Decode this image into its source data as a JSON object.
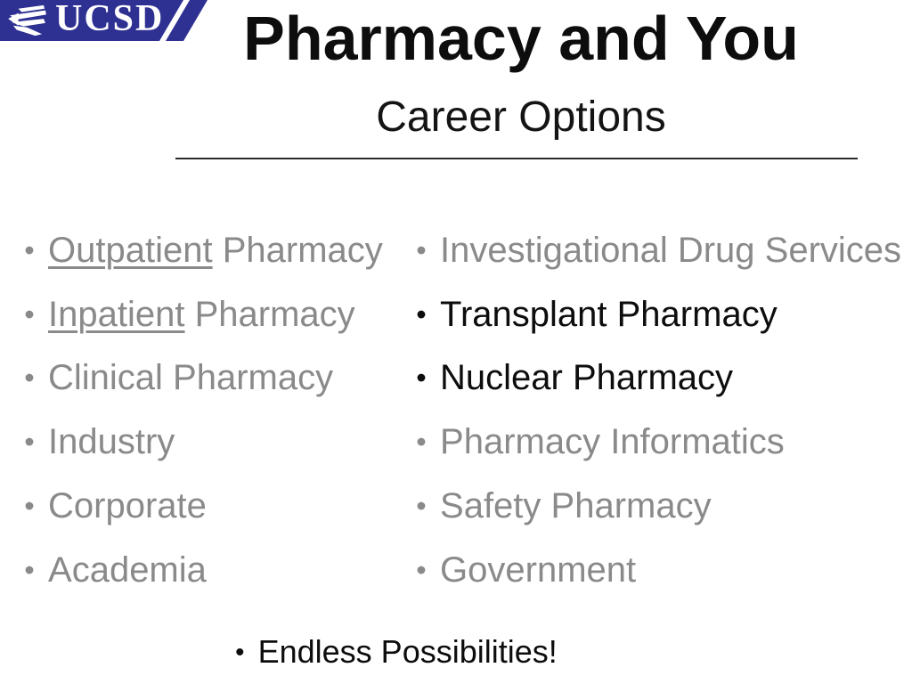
{
  "logo": {
    "text": "UCSD",
    "bg_color": "#2e3192",
    "text_color": "#ffffff"
  },
  "slide": {
    "title": "Pharmacy and You",
    "subtitle": "Career Options"
  },
  "bullet_icon": "•",
  "colors": {
    "gray": "#8a8a8a",
    "black": "#0d0d0d"
  },
  "columns": {
    "left": [
      {
        "color": "gray",
        "segments": [
          {
            "text": "Outpatient",
            "underline": true
          },
          {
            "text": " Pharmacy",
            "underline": false
          }
        ]
      },
      {
        "color": "gray",
        "segments": [
          {
            "text": "Inpatient",
            "underline": true
          },
          {
            "text": " Pharmacy",
            "underline": false
          }
        ]
      },
      {
        "color": "gray",
        "segments": [
          {
            "text": "Clinical Pharmacy",
            "underline": false
          }
        ]
      },
      {
        "color": "gray",
        "segments": [
          {
            "text": "Industry",
            "underline": false
          }
        ]
      },
      {
        "color": "gray",
        "segments": [
          {
            "text": "Corporate",
            "underline": false
          }
        ]
      },
      {
        "color": "gray",
        "segments": [
          {
            "text": "Academia",
            "underline": false
          }
        ]
      }
    ],
    "right": [
      {
        "color": "gray",
        "segments": [
          {
            "text": "Investigational Drug Services",
            "underline": false
          }
        ]
      },
      {
        "color": "black",
        "segments": [
          {
            "text": "Transplant Pharmacy",
            "underline": false
          }
        ]
      },
      {
        "color": "black",
        "segments": [
          {
            "text": "Nuclear Pharmacy",
            "underline": false
          }
        ]
      },
      {
        "color": "gray",
        "segments": [
          {
            "text": "Pharmacy Informatics",
            "underline": false
          }
        ]
      },
      {
        "color": "gray",
        "segments": [
          {
            "text": "Safety Pharmacy",
            "underline": false
          }
        ]
      },
      {
        "color": "gray",
        "segments": [
          {
            "text": "Government",
            "underline": false
          }
        ]
      }
    ]
  },
  "footer": {
    "color": "black",
    "text": "Endless Possibilities!"
  }
}
